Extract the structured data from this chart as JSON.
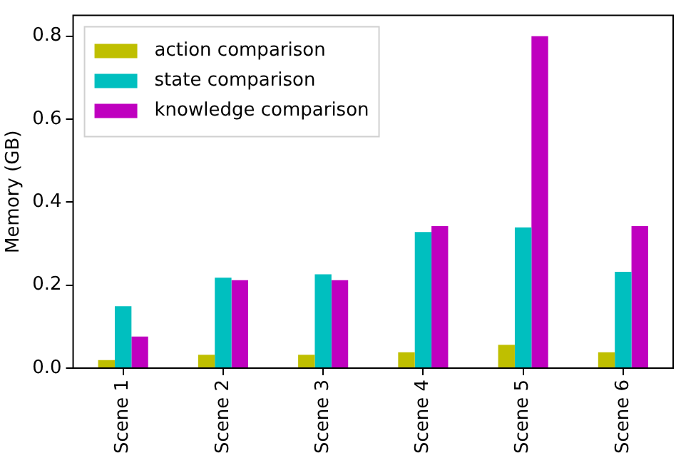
{
  "chart_data": {
    "type": "bar",
    "ylabel": "Memory (GB)",
    "categories": [
      "Scene 1",
      "Scene 2",
      "Scene 3",
      "Scene 4",
      "Scene 5",
      "Scene 6"
    ],
    "series": [
      {
        "name": "action comparison",
        "color": "#bfbf00",
        "values": [
          0.019,
          0.032,
          0.032,
          0.038,
          0.056,
          0.038
        ]
      },
      {
        "name": "state comparison",
        "color": "#00bfbf",
        "values": [
          0.149,
          0.218,
          0.226,
          0.328,
          0.339,
          0.232
        ]
      },
      {
        "name": "knowledge comparison",
        "color": "#bf00bf",
        "values": [
          0.076,
          0.212,
          0.212,
          0.342,
          0.8,
          0.342
        ]
      }
    ],
    "ylim": [
      0,
      0.85
    ],
    "yticks": [
      {
        "value": 0,
        "label": "0.0"
      },
      0.2,
      0.4,
      0.6,
      {
        "value": 0.8,
        "label": "0.8"
      }
    ],
    "grid": false,
    "legend": "top left"
  }
}
